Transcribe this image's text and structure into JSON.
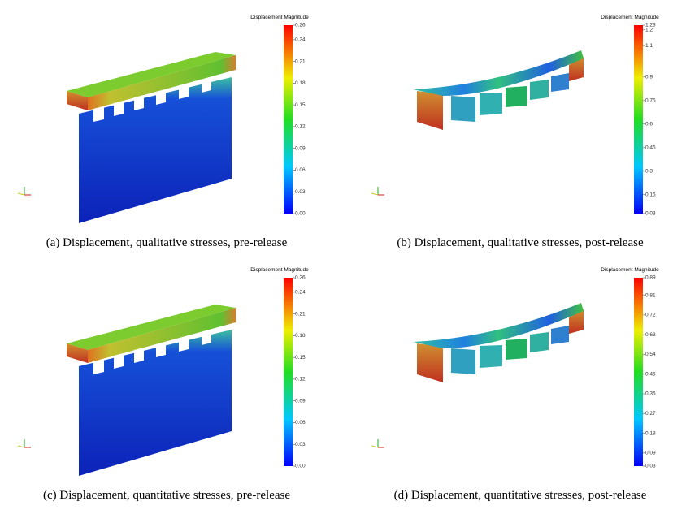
{
  "panels": [
    {
      "caption": "(a) Displacement, qualitative stresses, pre-release",
      "colorbar": {
        "title": "Displacement Magnitude",
        "range": [
          0,
          0.26
        ],
        "ticks": [
          {
            "value": 0,
            "label": "0.00"
          },
          {
            "value": 0.03,
            "label": "0.03"
          },
          {
            "value": 0.06,
            "label": "0.06"
          },
          {
            "value": 0.09,
            "label": "0.09"
          },
          {
            "value": 0.12,
            "label": "0.12"
          },
          {
            "value": 0.15,
            "label": "0.15"
          },
          {
            "value": 0.18,
            "label": "0.18"
          },
          {
            "value": 0.21,
            "label": "0.21"
          },
          {
            "value": 0.24,
            "label": "0.24"
          },
          {
            "value": 0.26,
            "label": "0.26"
          }
        ]
      }
    },
    {
      "caption": "(b) Displacement, qualitative stresses, post-release",
      "colorbar": {
        "title": "Displacement Magnitude",
        "range": [
          0.03,
          1.23
        ],
        "ticks": [
          {
            "value": 0.03,
            "label": "0.03"
          },
          0.15,
          0.3,
          0.45,
          0.6,
          0.75,
          0.9,
          1.1,
          1.2,
          1.23
        ]
      }
    },
    {
      "caption": "(c) Displacement, quantitative stresses, pre-release",
      "colorbar": {
        "title": "Displacement Magnitude",
        "range": [
          0,
          0.26
        ],
        "ticks": [
          {
            "value": 0,
            "label": "0.00"
          },
          {
            "value": 0.03,
            "label": "0.03"
          },
          {
            "value": 0.06,
            "label": "0.06"
          },
          {
            "value": 0.09,
            "label": "0.09"
          },
          {
            "value": 0.12,
            "label": "0.12"
          },
          {
            "value": 0.15,
            "label": "0.15"
          },
          {
            "value": 0.18,
            "label": "0.18"
          },
          {
            "value": 0.21,
            "label": "0.21"
          },
          {
            "value": 0.24,
            "label": "0.24"
          },
          {
            "value": 0.26,
            "label": "0.26"
          }
        ]
      }
    },
    {
      "caption": "(d) Displacement, quantitative stresses, post-release",
      "colorbar": {
        "title": "Displacement Magnitude",
        "range": [
          0.03,
          0.89
        ],
        "ticks": [
          0.03,
          0.09,
          0.18,
          0.27,
          0.36,
          0.45,
          0.54,
          0.63,
          0.72,
          0.81,
          0.89
        ]
      }
    }
  ]
}
